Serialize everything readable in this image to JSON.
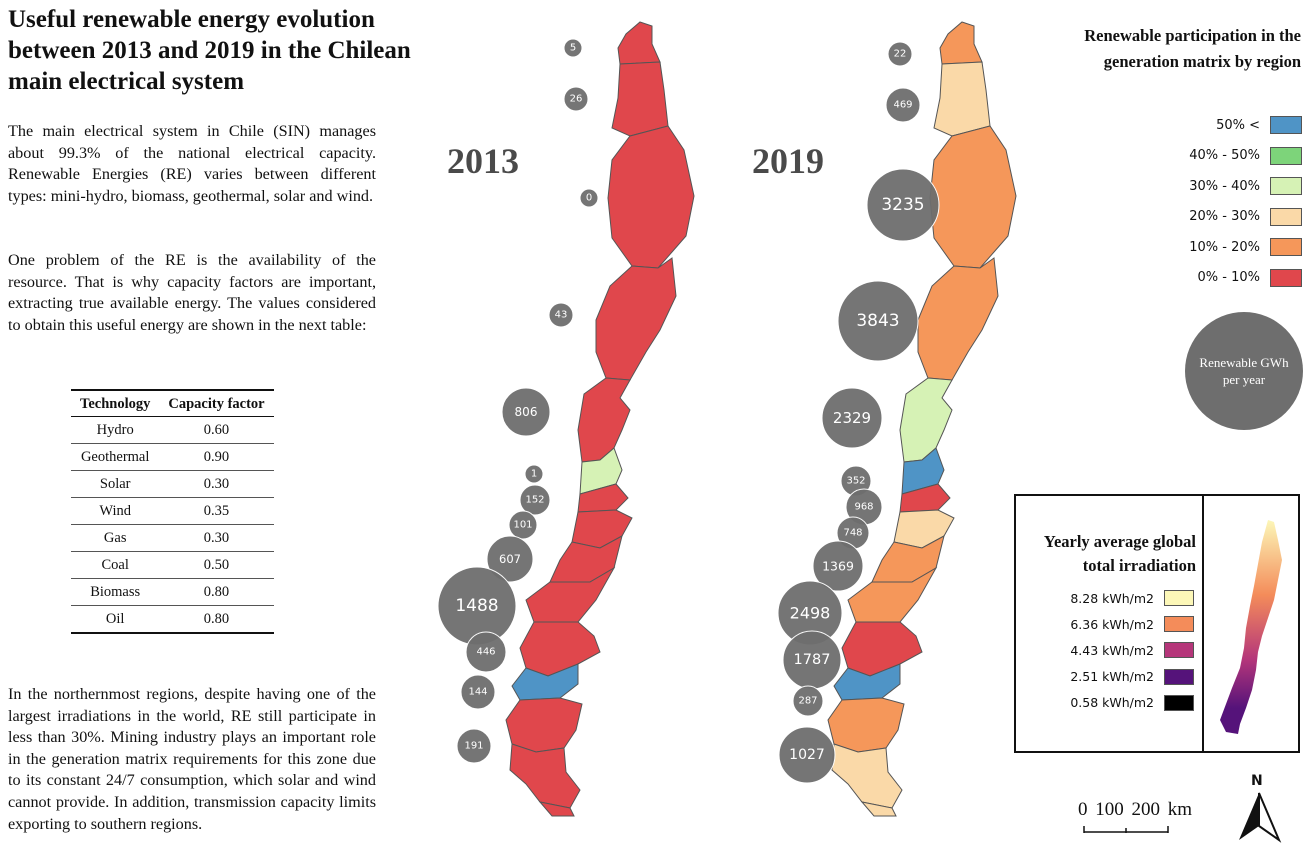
{
  "title": "Useful renewable energy evolution between 2013 and 2019 in the Chilean main electrical system",
  "paragraph_1": "The main electrical system in Chile (SIN) manages about 99.3% of the national electrical capacity. Renewable Energies (RE) varies between different types: mini-hydro, biomass, geothermal, solar and wind.",
  "paragraph_2": "One problem of the RE is the availability of the resource. That is why capacity factors are important, extracting true available energy. The values considered to obtain this useful energy are shown in the next table:",
  "paragraph_3": "In the northernmost regions, despite having one of the largest irradiations in the world, RE still participate in less than 30%. Mining industry plays an important role in the generation matrix requirements for this zone due to its constant 24/7 consumption, which solar and wind cannot provide. In addition, transmission capacity limits exporting to southern regions.",
  "table": {
    "headers": [
      "Technology",
      "Capacity factor"
    ],
    "rows": [
      [
        "Hydro",
        "0.60"
      ],
      [
        "Geothermal",
        "0.90"
      ],
      [
        "Solar",
        "0.30"
      ],
      [
        "Wind",
        "0.35"
      ],
      [
        "Gas",
        "0.30"
      ],
      [
        "Coal",
        "0.50"
      ],
      [
        "Biomass",
        "0.80"
      ],
      [
        "Oil",
        "0.80"
      ]
    ]
  },
  "maps": {
    "year_2013": "2013",
    "year_2019": "2019",
    "gwh_2013": [
      "5",
      "26",
      "0",
      "43",
      "806",
      "1",
      "152",
      "101",
      "607",
      "1488",
      "446",
      "144",
      "191"
    ],
    "gwh_2019": [
      "22",
      "469",
      "3235",
      "3843",
      "2329",
      "352",
      "968",
      "748",
      "1369",
      "2498",
      "1787",
      "287",
      "1027"
    ],
    "participation_class_2013": [
      "0% - 10%",
      "0% - 10%",
      "0% - 10%",
      "0% - 10%",
      "0% - 10%",
      "30% - 40%",
      "0% - 10%",
      "0% - 10%",
      "0% - 10%",
      "0% - 10%",
      "0% - 10%",
      "50% <",
      "0% - 10%",
      "0% - 10%",
      "0% - 10%"
    ],
    "participation_class_2019": [
      "10% - 20%",
      "20% - 30%",
      "10% - 20%",
      "10% - 20%",
      "30% - 40%",
      "50% <",
      "0% - 10%",
      "20% - 30%",
      "10% - 20%",
      "10% - 20%",
      "0% - 10%",
      "50% <",
      "10% - 20%",
      "20% - 30%",
      "20% - 30%"
    ]
  },
  "legend": {
    "title": "Renewable participation in the generation matrix by region",
    "items": [
      {
        "label": "50% <",
        "color": "#4f94c6"
      },
      {
        "label": "40% - 50%",
        "color": "#7dd47a"
      },
      {
        "label": "30% - 40%",
        "color": "#d6f2b5"
      },
      {
        "label": "20% - 30%",
        "color": "#fad9a8"
      },
      {
        "label": "10% - 20%",
        "color": "#f5975a"
      },
      {
        "label": "0% - 10%",
        "color": "#e0474c"
      }
    ],
    "bubble_label": "Renewable GWh per year",
    "bubble_color": "#6e6e6e"
  },
  "irradiation": {
    "title": "Yearly average global total irradiation",
    "items": [
      {
        "label": "8.28 kWh/m2",
        "color": "#fcf7b8"
      },
      {
        "label": "6.36 kWh/m2",
        "color": "#f48c5a"
      },
      {
        "label": "4.43 kWh/m2",
        "color": "#b5367a"
      },
      {
        "label": "2.51 kWh/m2",
        "color": "#55137a"
      },
      {
        "label": "0.58 kWh/m2",
        "color": "#000000"
      }
    ]
  },
  "scale_bar": "0  100 200 km",
  "north_label": "N"
}
